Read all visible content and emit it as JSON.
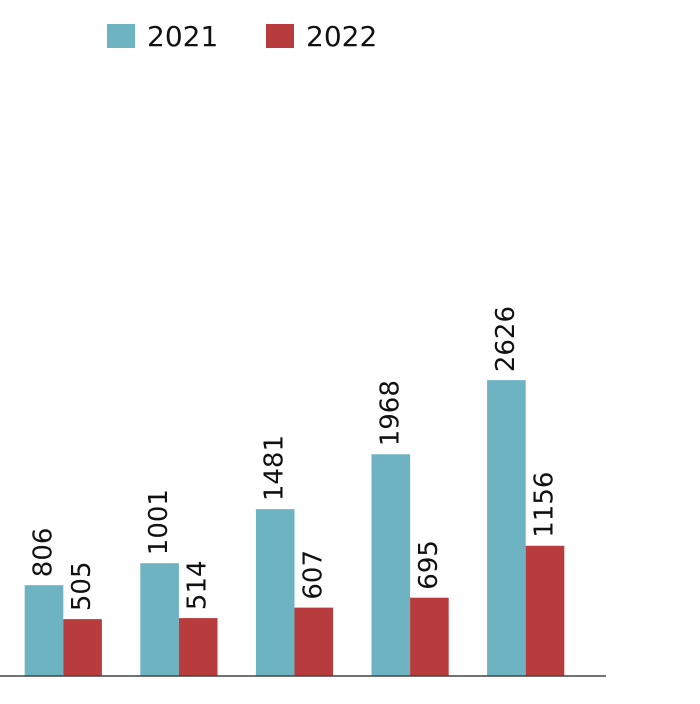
{
  "chart_data": {
    "type": "bar",
    "categories": [
      null,
      null,
      null,
      null,
      null
    ],
    "series": [
      {
        "name": "2021",
        "color": "#6db3c1",
        "values": [
          806,
          1001,
          1481,
          1968,
          2626
        ]
      },
      {
        "name": "2022",
        "color": "#b83c3d",
        "values": [
          505,
          514,
          607,
          695,
          1156
        ]
      }
    ],
    "ylim": [
      0,
      6000
    ],
    "legend": "top"
  }
}
